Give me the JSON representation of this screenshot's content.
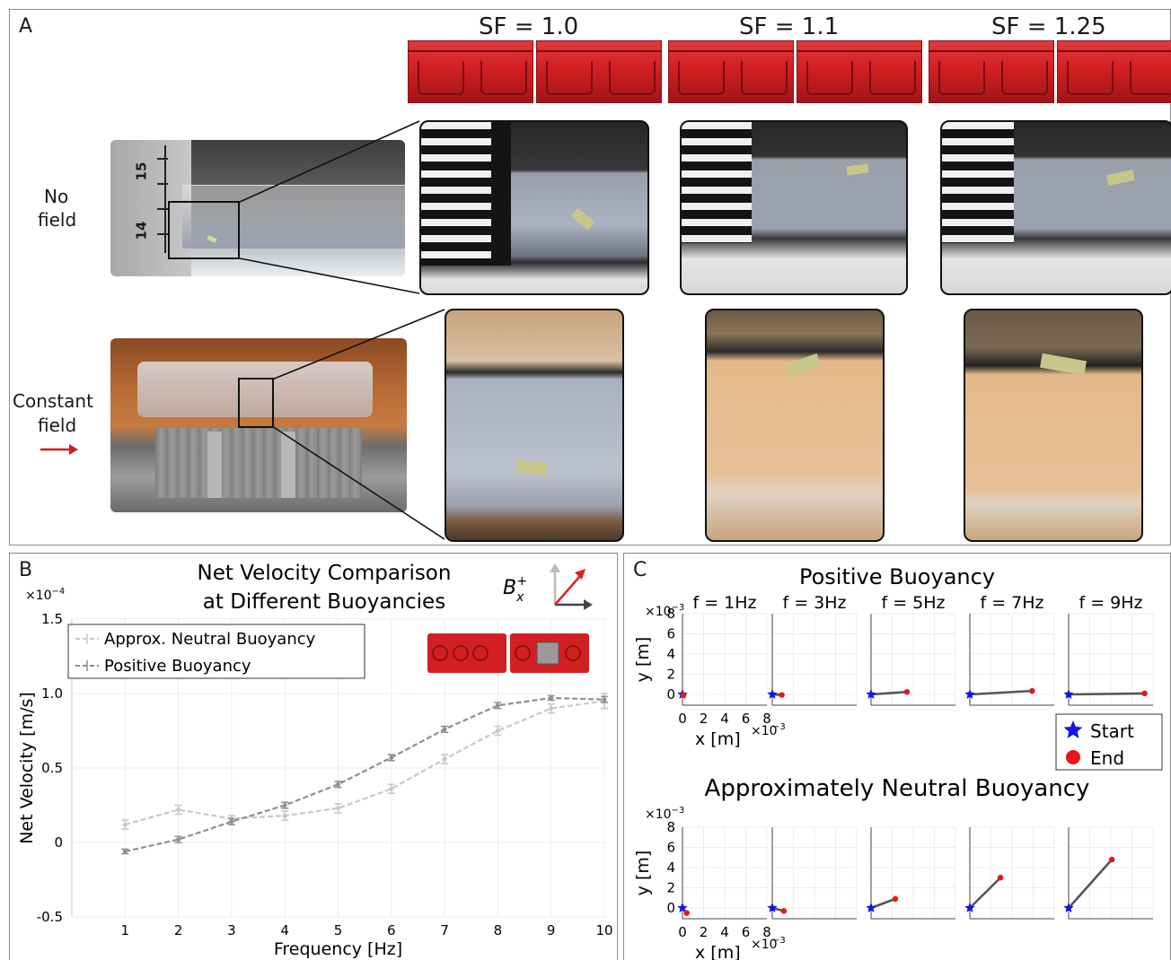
{
  "panel_a": {
    "label": "A",
    "sf_labels": [
      "SF = 1.0",
      "SF = 1.1",
      "SF = 1.25"
    ],
    "row_labels": {
      "no_field": [
        "No",
        "field"
      ],
      "constant_field": [
        "Constant",
        "field"
      ]
    },
    "ruler_numbers": [
      "15",
      "14"
    ],
    "colors": {
      "model_red": "#d21f22",
      "arrow_red": "#cc1f1f"
    }
  },
  "panel_b": {
    "label": "B",
    "title_line1": "Net Velocity Comparison",
    "title_line2": "at Different Buoyancies",
    "exponent": "×10",
    "exponent_power": "−4",
    "field_symbol": "B",
    "field_sub": "x",
    "field_sup": "+",
    "chart_data": {
      "type": "line",
      "xlabel": "Frequency [Hz]",
      "ylabel": "Net Velocity [m/s]",
      "x": [
        1,
        2,
        3,
        4,
        5,
        6,
        7,
        8,
        9,
        10
      ],
      "xlim": [
        0,
        10
      ],
      "ylim": [
        -0.5,
        1.5
      ],
      "y_ticks": [
        "-0.5",
        "0",
        "0.5",
        "1.0",
        "1.5"
      ],
      "x_ticks": [
        "1",
        "2",
        "3",
        "4",
        "5",
        "6",
        "7",
        "8",
        "9",
        "10"
      ],
      "grid": true,
      "legend_position": "top-left",
      "series": [
        {
          "name": "Approx. Neutral Buoyancy",
          "color": "#c8c8c8",
          "values": [
            0.12,
            0.22,
            0.16,
            0.18,
            0.23,
            0.36,
            0.56,
            0.75,
            0.9,
            0.95
          ],
          "errors": [
            0.03,
            0.03,
            0.02,
            0.03,
            0.03,
            0.03,
            0.03,
            0.03,
            0.03,
            0.05
          ]
        },
        {
          "name": "Positive Buoyancy",
          "color": "#8f8f8f",
          "values": [
            -0.06,
            0.02,
            0.14,
            0.25,
            0.39,
            0.57,
            0.76,
            0.92,
            0.97,
            0.96
          ],
          "errors": [
            0.015,
            0.02,
            0.02,
            0.02,
            0.02,
            0.02,
            0.02,
            0.02,
            0.015,
            0.02
          ]
        }
      ]
    }
  },
  "panel_c": {
    "label": "C",
    "title_positive": "Positive Buoyancy",
    "title_neutral": "Approximately Neutral Buoyancy",
    "exponent_y": "×10",
    "exponent_power": "−3",
    "xlabel": "x [m]",
    "ylabel": "y [m]",
    "y_ticks": [
      "0",
      "2",
      "4",
      "6",
      "8"
    ],
    "x_ticks": [
      "0",
      "2",
      "4",
      "6",
      "8"
    ],
    "legend": {
      "start": "Start",
      "end": "End"
    },
    "colors": {
      "start": "#1515e6",
      "end": "#e61717",
      "path": "#555555"
    },
    "chart_data": [
      {
        "type": "line",
        "title": "Positive Buoyancy",
        "xlabel": "x [m]",
        "ylabel": "y [m]",
        "xlim": [
          0,
          8
        ],
        "ylim": [
          0,
          8
        ],
        "subplots": [
          {
            "title": "f = 1Hz",
            "start": [
              0,
              0
            ],
            "end": [
              0.1,
              -0.05
            ]
          },
          {
            "title": "f = 3Hz",
            "start": [
              0,
              0
            ],
            "end": [
              0.9,
              -0.05
            ]
          },
          {
            "title": "f = 5Hz",
            "start": [
              0,
              0
            ],
            "end": [
              3.4,
              0.25
            ]
          },
          {
            "title": "f = 7Hz",
            "start": [
              0,
              0
            ],
            "end": [
              5.9,
              0.35
            ]
          },
          {
            "title": "f = 9Hz",
            "start": [
              0,
              0
            ],
            "end": [
              7.2,
              0.1
            ]
          }
        ]
      },
      {
        "type": "line",
        "title": "Approximately Neutral Buoyancy",
        "xlabel": "x [m]",
        "ylabel": "y [m]",
        "xlim": [
          0,
          8
        ],
        "ylim": [
          0,
          8
        ],
        "subplots": [
          {
            "title": "f = 1Hz",
            "start": [
              0,
              0
            ],
            "end": [
              0.4,
              -0.5
            ]
          },
          {
            "title": "f = 3Hz",
            "start": [
              0,
              0
            ],
            "end": [
              1.1,
              -0.3
            ]
          },
          {
            "title": "f = 5Hz",
            "start": [
              0,
              0
            ],
            "end": [
              2.3,
              0.9
            ]
          },
          {
            "title": "f = 7Hz",
            "start": [
              0,
              0
            ],
            "end": [
              2.9,
              3.0
            ]
          },
          {
            "title": "f = 9Hz",
            "start": [
              0,
              0
            ],
            "end": [
              4.1,
              4.8
            ]
          }
        ]
      }
    ]
  }
}
